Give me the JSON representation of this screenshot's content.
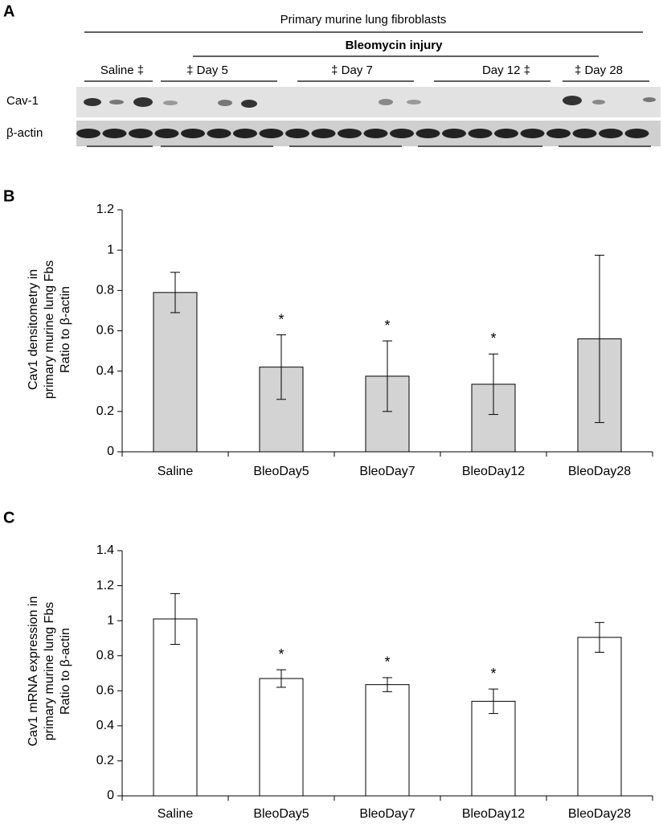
{
  "blot": {
    "panel": "A",
    "header": "Primary murine lung fibroblasts",
    "subheader": "Bleomycin injury",
    "groups": [
      "Saline ‡",
      "‡  Day 5",
      "‡  Day 7",
      "Day 12  ‡",
      "‡  Day 28"
    ],
    "rows": [
      "Cav-1",
      "β-actin"
    ]
  },
  "chart_data": [
    {
      "type": "bar",
      "panel": "B",
      "ylabel": [
        "Cav1 densitometry in",
        "primary murine lung Fbs",
        "Ratio to β-actin"
      ],
      "categories": [
        "Saline",
        "BleoDay5",
        "BleoDay7",
        "BleoDay12",
        "BleoDay28"
      ],
      "values": [
        0.79,
        0.42,
        0.375,
        0.335,
        0.56
      ],
      "errors": [
        0.1,
        0.16,
        0.175,
        0.15,
        0.415
      ],
      "significance": [
        null,
        "*",
        "*",
        "*",
        null
      ],
      "color": "#d3d3d3",
      "ylim": [
        0,
        1.2
      ],
      "yticks": [
        0,
        0.2,
        0.4,
        0.6,
        0.8,
        1,
        1.2
      ]
    },
    {
      "type": "bar",
      "panel": "C",
      "ylabel": [
        "Cav1 mRNA expression in",
        "primary murine lung Fbs",
        "Ratio to β-actin"
      ],
      "categories": [
        "Saline",
        "BleoDay5",
        "BleoDay7",
        "BleoDay12",
        "BleoDay28"
      ],
      "values": [
        1.01,
        0.67,
        0.635,
        0.54,
        0.905
      ],
      "errors": [
        0.145,
        0.05,
        0.04,
        0.07,
        0.085
      ],
      "significance": [
        null,
        "*",
        "*",
        "*",
        null
      ],
      "color": "#ffffff",
      "ylim": [
        0,
        1.4
      ],
      "yticks": [
        0,
        0.2,
        0.4,
        0.6,
        0.8,
        1,
        1.2,
        1.4
      ]
    }
  ]
}
